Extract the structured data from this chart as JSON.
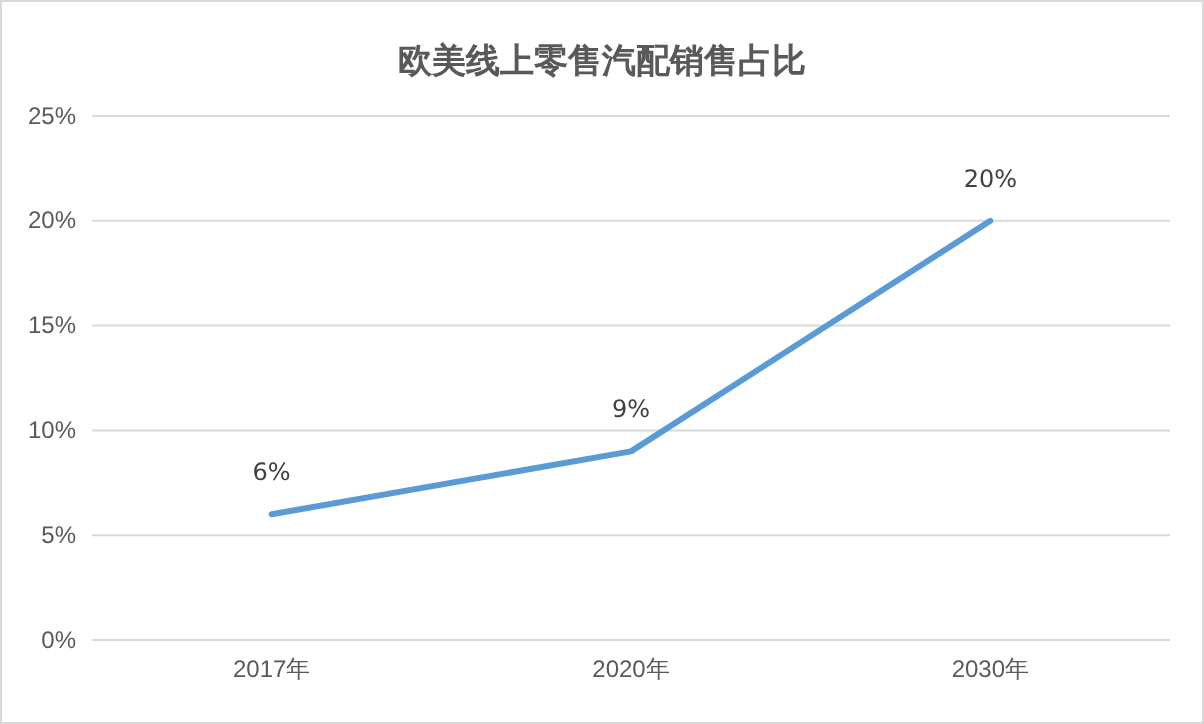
{
  "chart_data": {
    "type": "line",
    "title": "欧美线上零售汽配销售占比",
    "categories": [
      "2017年",
      "2020年",
      "2030年"
    ],
    "series": [
      {
        "color": "#5b9bd5",
        "values": [
          6,
          9,
          20
        ],
        "value_labels": [
          "6%",
          "9%",
          "20%"
        ]
      }
    ],
    "ylim": [
      0,
      25
    ],
    "yticks": [
      {
        "value": 0,
        "label": "0%"
      },
      {
        "value": 5,
        "label": "5%"
      },
      {
        "value": 10,
        "label": "10%"
      },
      {
        "value": 15,
        "label": "15%"
      },
      {
        "value": 20,
        "label": "20%"
      },
      {
        "value": 25,
        "label": "25%"
      }
    ],
    "grid": "y",
    "marker": "none",
    "line_style": "solid"
  }
}
